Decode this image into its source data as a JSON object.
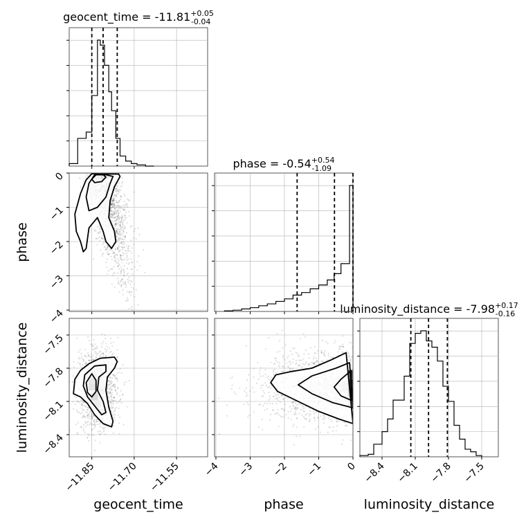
{
  "chart_data": {
    "type": "corner",
    "parameters": [
      "geocent_time",
      "phase",
      "luminosity_distance"
    ],
    "titles": [
      {
        "name": "geocent_time",
        "median": "-11.81",
        "plus": "+0.05",
        "minus": "-0.04"
      },
      {
        "name": "phase",
        "median": "-0.54",
        "plus": "+0.54",
        "minus": "-1.09"
      },
      {
        "name": "luminosity_distance",
        "median": "-7.98",
        "plus": "+0.17",
        "minus": "-0.16"
      }
    ],
    "axes": {
      "geocent_time": {
        "range": [
          -11.93,
          -11.44
        ],
        "ticks": [
          -11.85,
          -11.7,
          -11.55
        ],
        "tick_labels": [
          "−11.85",
          "−11.70",
          "−11.55"
        ]
      },
      "phase": {
        "range": [
          -4.04,
          0.0
        ],
        "ticks": [
          -4,
          -3,
          -2,
          -1,
          0
        ],
        "tick_labels": [
          "−4",
          "−3",
          "−2",
          "−1",
          "0"
        ]
      },
      "luminosity_distance": {
        "range": [
          -8.6,
          -7.35
        ],
        "ticks": [
          -8.4,
          -8.1,
          -7.8,
          -7.5
        ],
        "tick_labels": [
          "−8.4",
          "−8.1",
          "−7.8",
          "−7.5"
        ]
      }
    },
    "histograms": {
      "geocent_time": {
        "edges": [
          -11.93,
          -11.9,
          -11.87,
          -11.85,
          -11.83,
          -11.82,
          -11.805,
          -11.79,
          -11.78,
          -11.765,
          -11.75,
          -11.73,
          -11.71,
          -11.69,
          -11.66,
          -11.63
        ],
        "density": [
          2,
          22,
          27,
          56,
          100,
          96,
          80,
          59,
          44,
          22,
          8,
          4,
          2,
          1,
          0
        ]
      },
      "phase": {
        "edges": [
          -3.75,
          -3.5,
          -3.25,
          -3.0,
          -2.75,
          -2.5,
          -2.25,
          -2.0,
          -1.75,
          -1.5,
          -1.25,
          -1.0,
          -0.75,
          -0.55,
          -0.35,
          -0.1,
          0.0
        ],
        "density": [
          0.5,
          1,
          2,
          3,
          4.5,
          6,
          8,
          10,
          13,
          15,
          18,
          21,
          25,
          30,
          38,
          100
        ]
      },
      "luminosity_distance": {
        "edges": [
          -8.6,
          -8.525,
          -8.475,
          -8.4,
          -8.35,
          -8.3,
          -8.2,
          -8.15,
          -8.1,
          -8.05,
          -8.0,
          -7.95,
          -7.9,
          -7.85,
          -7.8,
          -7.75,
          -7.7,
          -7.65,
          -7.6,
          -7.55,
          -7.5
        ],
        "density": [
          1,
          2,
          10,
          20,
          30,
          45,
          64,
          90,
          98,
          100,
          92,
          87,
          76,
          56,
          44,
          25,
          14,
          6,
          4,
          1
        ]
      }
    },
    "quantiles": {
      "geocent_time": [
        -11.85,
        -11.81,
        -11.76
      ],
      "phase": [
        -1.63,
        -0.54,
        0.0
      ],
      "luminosity_distance": [
        -8.14,
        -7.98,
        -7.81
      ]
    },
    "contours": {
      "phase_vs_geocent_time": {
        "outer": [
          [
            -11.8,
            -0.03
          ],
          [
            -11.82,
            -0.03
          ],
          [
            -11.85,
            -0.02
          ],
          [
            -11.87,
            -0.2
          ],
          [
            -11.89,
            -0.6
          ],
          [
            -11.91,
            -1.2
          ],
          [
            -11.905,
            -1.7
          ],
          [
            -11.89,
            -2.0
          ],
          [
            -11.88,
            -2.3
          ],
          [
            -11.87,
            -2.2
          ],
          [
            -11.86,
            -1.6
          ],
          [
            -11.83,
            -1.3
          ],
          [
            -11.81,
            -1.7
          ],
          [
            -11.8,
            -2.0
          ],
          [
            -11.78,
            -2.2
          ],
          [
            -11.765,
            -2.0
          ],
          [
            -11.77,
            -1.7
          ],
          [
            -11.79,
            -1.3
          ],
          [
            -11.785,
            -0.8
          ],
          [
            -11.77,
            -0.4
          ],
          [
            -11.75,
            -0.1
          ],
          [
            -11.755,
            -0.03
          ]
        ],
        "mid": [
          [
            -11.8,
            -0.05
          ],
          [
            -11.84,
            -0.05
          ],
          [
            -11.86,
            -0.3
          ],
          [
            -11.87,
            -0.7
          ],
          [
            -11.86,
            -1.1
          ],
          [
            -11.83,
            -1.0
          ],
          [
            -11.8,
            -0.7
          ],
          [
            -11.785,
            -0.3
          ],
          [
            -11.775,
            -0.1
          ]
        ],
        "inner": [
          [
            -11.835,
            -0.05
          ],
          [
            -11.85,
            -0.18
          ],
          [
            -11.84,
            -0.28
          ],
          [
            -11.815,
            -0.25
          ],
          [
            -11.8,
            -0.12
          ],
          [
            -11.81,
            -0.05
          ]
        ]
      },
      "luminosity_distance_vs_geocent_time": {
        "outer": [
          [
            -11.77,
            -7.7
          ],
          [
            -11.82,
            -7.71
          ],
          [
            -11.86,
            -7.76
          ],
          [
            -11.89,
            -7.82
          ],
          [
            -11.91,
            -7.9
          ],
          [
            -11.915,
            -8.03
          ],
          [
            -11.89,
            -8.06
          ],
          [
            -11.865,
            -8.12
          ],
          [
            -11.84,
            -8.22
          ],
          [
            -11.81,
            -8.3
          ],
          [
            -11.78,
            -8.33
          ],
          [
            -11.775,
            -8.28
          ],
          [
            -11.79,
            -8.15
          ],
          [
            -11.8,
            -8.0
          ],
          [
            -11.795,
            -7.88
          ],
          [
            -11.77,
            -7.8
          ],
          [
            -11.76,
            -7.74
          ]
        ],
        "mid": [
          [
            -11.8,
            -7.77
          ],
          [
            -11.84,
            -7.78
          ],
          [
            -11.875,
            -7.86
          ],
          [
            -11.88,
            -7.96
          ],
          [
            -11.865,
            -8.06
          ],
          [
            -11.84,
            -8.14
          ],
          [
            -11.815,
            -8.22
          ],
          [
            -11.8,
            -8.2
          ],
          [
            -11.81,
            -8.1
          ],
          [
            -11.83,
            -8.0
          ],
          [
            -11.825,
            -7.88
          ],
          [
            -11.8,
            -7.83
          ]
        ],
        "inner": [
          [
            -11.85,
            -7.85
          ],
          [
            -11.87,
            -7.93
          ],
          [
            -11.865,
            -8.02
          ],
          [
            -11.85,
            -8.06
          ],
          [
            -11.835,
            -8.01
          ],
          [
            -11.835,
            -7.91
          ]
        ]
      },
      "luminosity_distance_vs_phase": {
        "outer": [
          [
            -0.2,
            -7.66
          ],
          [
            -0.6,
            -7.72
          ],
          [
            -1.2,
            -7.8
          ],
          [
            -1.8,
            -7.83
          ],
          [
            -2.25,
            -7.86
          ],
          [
            -2.4,
            -7.93
          ],
          [
            -2.2,
            -8.01
          ],
          [
            -1.6,
            -8.1
          ],
          [
            -1.0,
            -8.19
          ],
          [
            -0.4,
            -8.26
          ],
          [
            0.0,
            -8.3
          ]
        ],
        "mid": [
          [
            -0.1,
            -7.75
          ],
          [
            -0.5,
            -7.8
          ],
          [
            -1.2,
            -7.87
          ],
          [
            -1.6,
            -7.95
          ],
          [
            -1.2,
            -8.03
          ],
          [
            -0.6,
            -8.11
          ],
          [
            -0.1,
            -8.15
          ],
          [
            0.0,
            -8.16
          ]
        ],
        "inner": [
          [
            -0.05,
            -7.82
          ],
          [
            -0.35,
            -7.9
          ],
          [
            -0.55,
            -7.97
          ],
          [
            -0.35,
            -8.05
          ],
          [
            -0.05,
            -8.09
          ]
        ]
      }
    },
    "xlabels": [
      "geocent_time",
      "phase",
      "luminosity_distance"
    ],
    "ylabels": [
      "phase",
      "luminosity_distance"
    ],
    "grid": true,
    "colors": {
      "line": "#000000",
      "grid": "#b0b0b0",
      "points": "#000000"
    }
  }
}
